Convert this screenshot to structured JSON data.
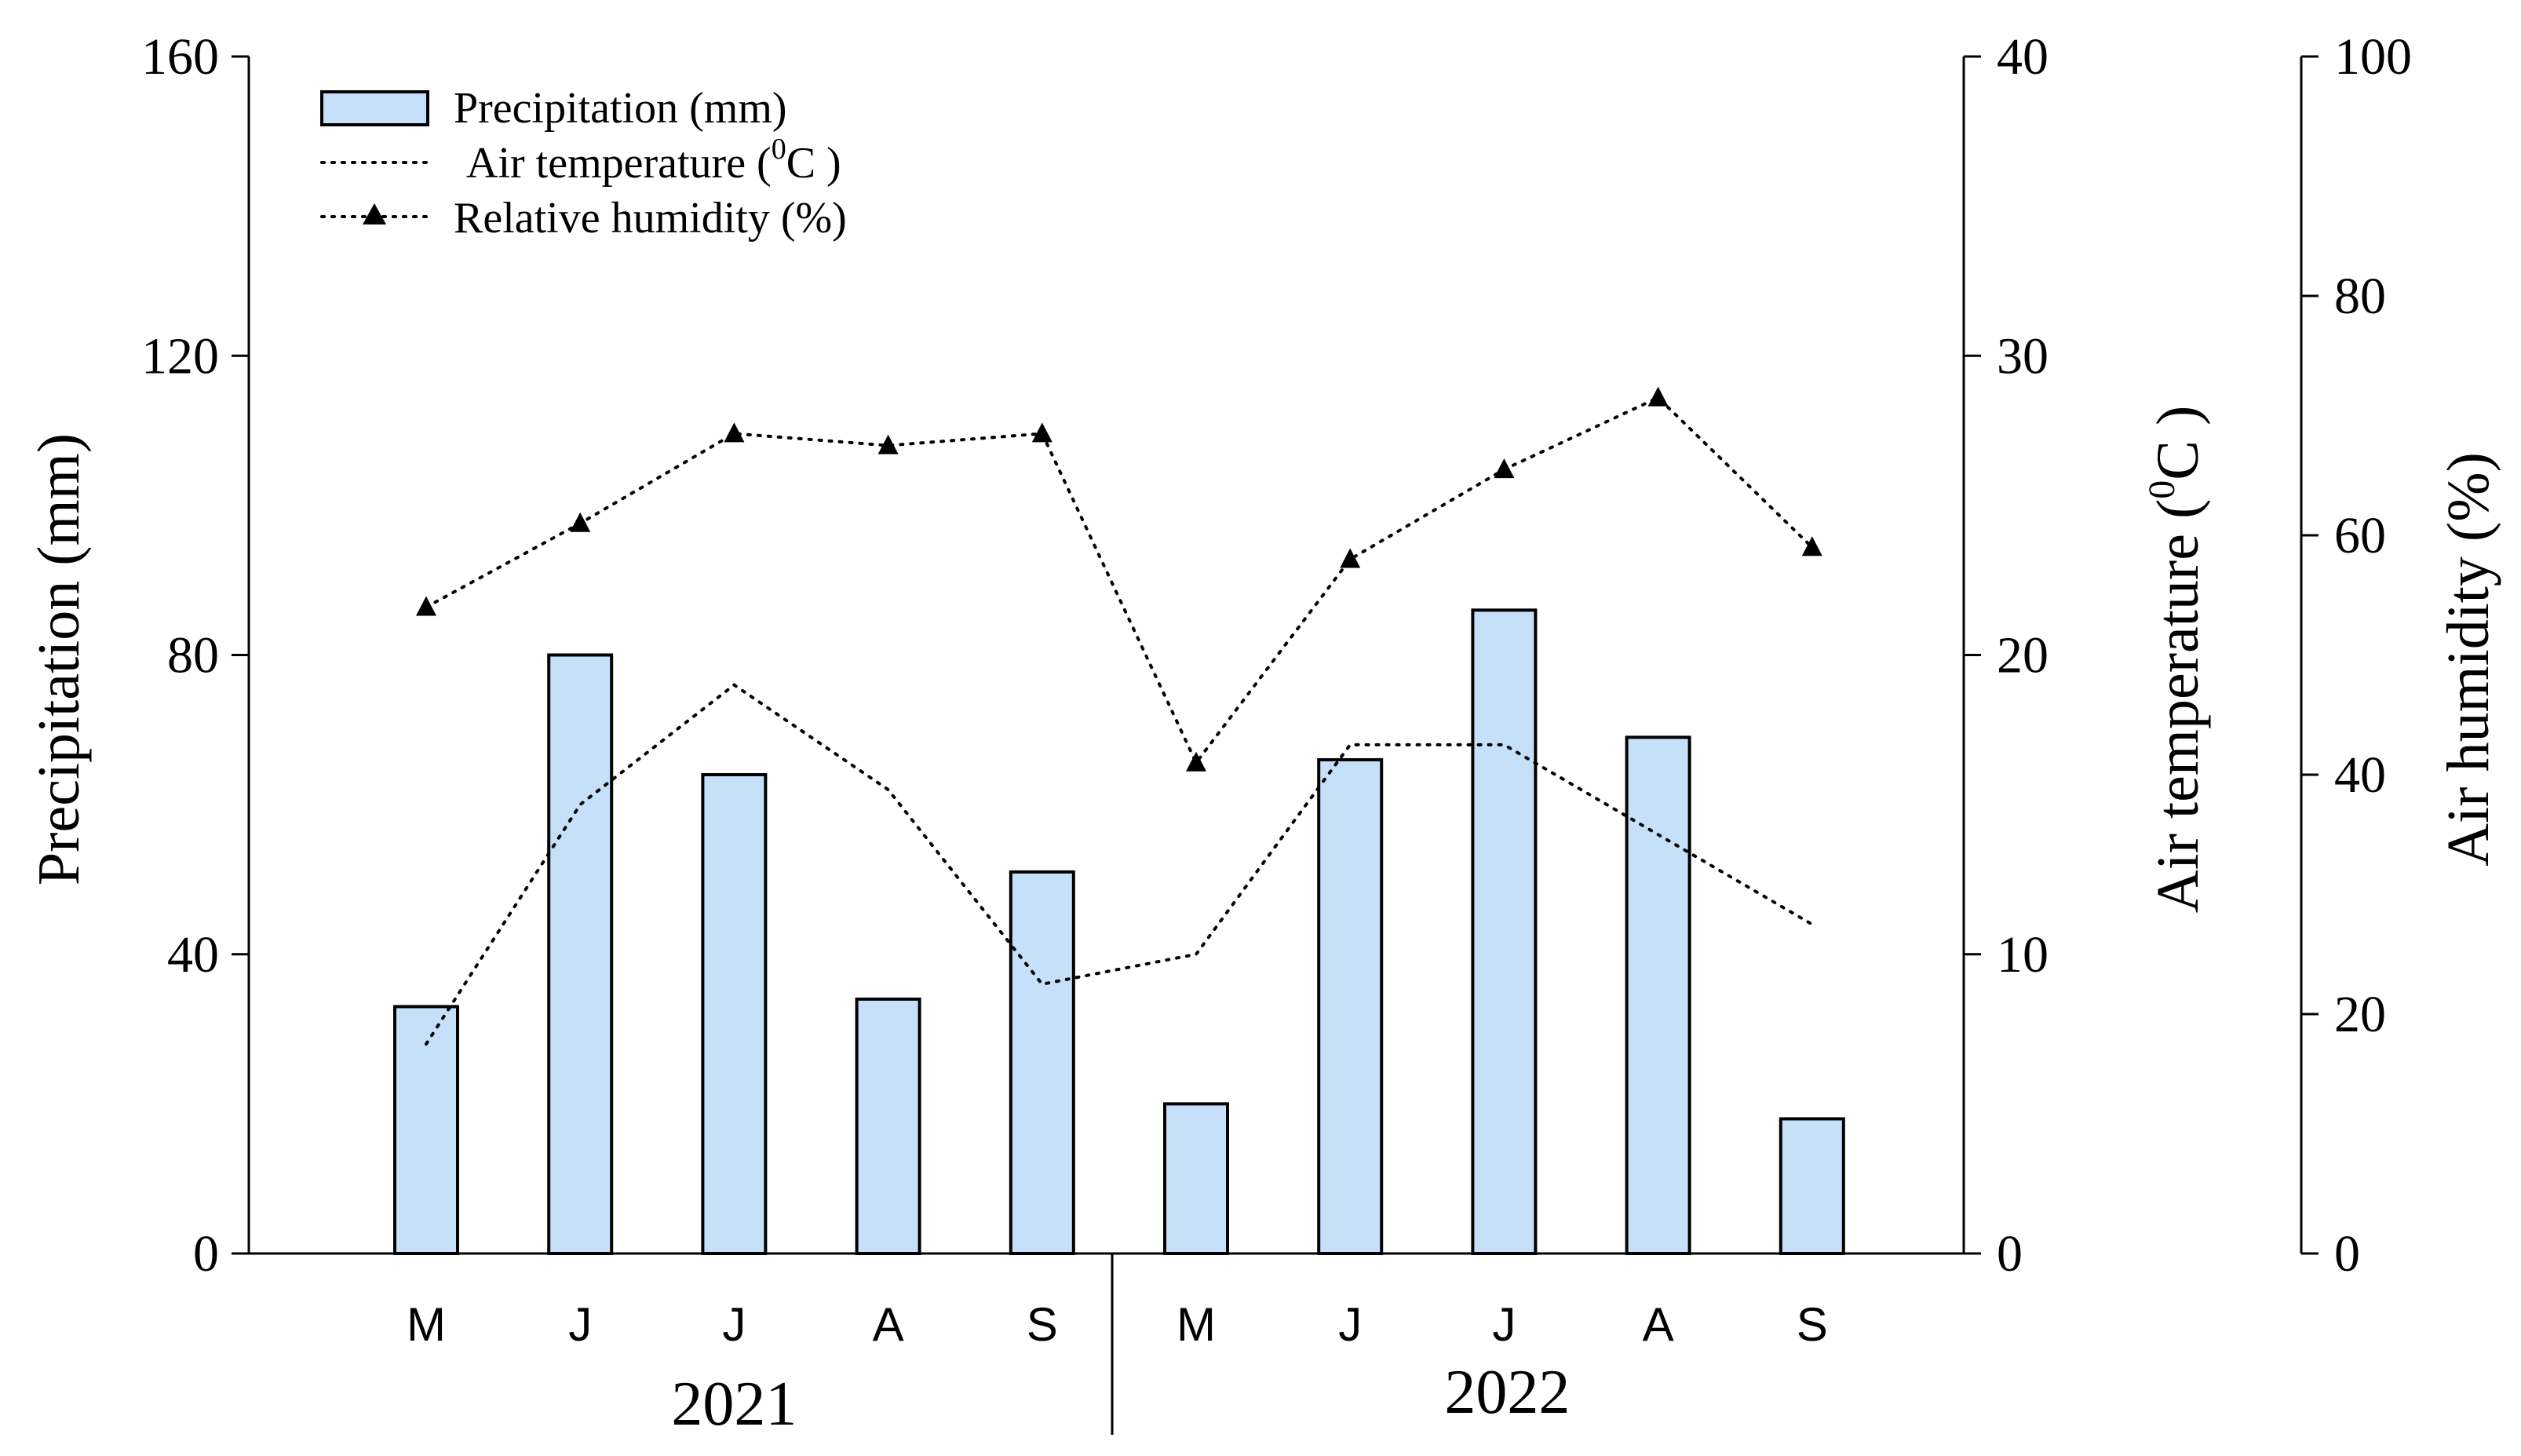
{
  "chart_data": {
    "type": "bar+line",
    "title": "",
    "years": [
      "2021",
      "2022"
    ],
    "months_per_year": 5,
    "categories": [
      "M",
      "J",
      "J",
      "A",
      "S",
      "M",
      "J",
      "J",
      "A",
      "S"
    ],
    "series": [
      {
        "name": "Precipitation (mm)",
        "kind": "bar",
        "axis": "left",
        "values": [
          33,
          80,
          64,
          34,
          51,
          20,
          66,
          86,
          69,
          18
        ]
      },
      {
        "name": "Air temperature (°C)",
        "legend_prefix": "Air temperature (",
        "legend_sup": "0",
        "legend_suffix": "C )",
        "kind": "line",
        "axis": "right1",
        "values": [
          7,
          15,
          19,
          15.5,
          9,
          10,
          17,
          17,
          14,
          11
        ]
      },
      {
        "name": "Relative humidity (%)",
        "kind": "line-marker",
        "axis": "right2",
        "values": [
          54,
          61,
          68.5,
          67.5,
          68.5,
          41,
          58,
          65.5,
          71.5,
          59
        ]
      }
    ],
    "axes": {
      "left": {
        "label": "Precipitation (mm)",
        "ylim": [
          0,
          160
        ],
        "ticks": [
          "0",
          "40",
          "80",
          "120",
          "160"
        ]
      },
      "right1": {
        "label_prefix": "Air temperature (",
        "label_sup": "0",
        "label_suffix": "C )",
        "ylim": [
          0,
          40
        ],
        "ticks": [
          "0",
          "10",
          "20",
          "30",
          "40"
        ]
      },
      "right2": {
        "label": "Air humidity (%)",
        "ylim": [
          0,
          100
        ],
        "ticks": [
          "0",
          "20",
          "40",
          "60",
          "80",
          "100"
        ]
      }
    },
    "legend_position": "top-left",
    "colors": {
      "bar_fill": "#c6e0fa",
      "bar_stroke": "#000000",
      "line": "#000000"
    }
  }
}
